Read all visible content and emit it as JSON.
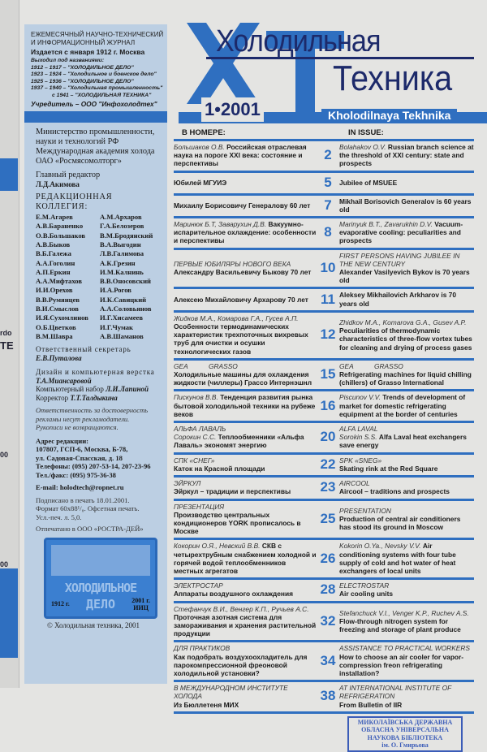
{
  "prev_page": {
    "fragments": [
      "rdo",
      "TE",
      "00",
      "00"
    ]
  },
  "masthead": {
    "caption": "ЕЖЕМЕСЯЧНЫЙ НАУЧНО-ТЕХНИЧЕСКИЙ И ИНФОРМАЦИОННЫЙ ЖУРНАЛ",
    "since": "Издается с января 1912 г. Москва",
    "former_label": "Выходил под названиями:",
    "former": [
      "1912 – 1917 – \"ХОЛОДИЛЬНОЕ ДЕЛО\"",
      "1923 – 1924 – \"Холодильное и боенское дело\"",
      "1925 – 1936 – \"ХОЛОДИЛЬНОЕ ДЕЛО\"",
      "1937 – 1940 – \"Холодильная промышленность\"",
      "с 1941 – \"ХОЛОДИЛЬНАЯ ТЕХНИКА\""
    ],
    "founder": "Учредитель – ООО \"Инфохолодтех\""
  },
  "logo": {
    "line1": "Холодильная",
    "line2": "Техника",
    "subtitle": "Kholodilnaya Tekhnika",
    "issue": "1•2001",
    "brand_color": "#2f6fc0"
  },
  "left": {
    "orgs": [
      "Министерство промышленности, науки и технологий РФ",
      "Международная академия холода",
      "ОАО «Росмясомолторг»"
    ],
    "editor_label": "Главный редактор",
    "editor": "Л.Д.Акимова",
    "board_label": "РЕДАКЦИОННАЯ КОЛЛЕГИЯ:",
    "board": [
      "Е.М.Агарев",
      "А.М.Архаров",
      "А.В.Бараненко",
      "Г.А.Белозеров",
      "О.В.Большаков",
      "В.М.Бродянский",
      "А.В.Быков",
      "В.А.Выгодин",
      "В.Б.Галежа",
      "Л.В.Галимова",
      "А.А.Гоголин",
      "А.К.Грезин",
      "А.П.Еркин",
      "И.М.Калнинь",
      "А.А.Мифтахов",
      "В.В.Оносовский",
      "И.И.Орехов",
      "И.А.Рогов",
      "В.В.Румянцев",
      "И.К.Савицкий",
      "В.И.Смыслов",
      "А.А.Соловьянов",
      "И.Я.Сухомлинов",
      "И.Г.Хисамеев",
      "О.Б.Цветков",
      "И.Г.Чумак",
      "В.М.Шавра",
      "А.В.Шаманов"
    ],
    "secretary_label": "Ответственный секретарь",
    "secretary": "Е.В.Путалова",
    "design_label": "Дизайн и компьютерная верстка",
    "designer": "Т.А.Миансаровой",
    "typeset_label": "Компьютерный набор",
    "typesetter": "Л.И.Лапиной",
    "proof_label": "Корректор",
    "proofreader": "Т.Т.Талдыкина",
    "disclaimer": [
      "Ответственность за достоверность",
      "рекламы несут рекламодатели.",
      "Рукописи не возвращаются."
    ],
    "address_label": "Адрес редакции:",
    "address": [
      "107807, ГСП-6, Москва, Б-78,",
      "ул. Садовая-Спасская, д. 18",
      "Телефоны: (095) 207-53-14, 207-23-96",
      "Тел./факс: (095) 975-36-38"
    ],
    "email": "E-mail: holodtech@ropnet.ru",
    "print": [
      "Подписано в печать 18.01.2001.",
      "Формат 60х88¹/₈. Офсетная печать.",
      "Усл.-печ. л. 5,0."
    ],
    "printer": "Отпечатано в ООО «РОСТРА-ДЕЙ»",
    "stamp": {
      "title": "ХОЛОДИЛЬНОЕ",
      "title2": "ДЕЛО",
      "year_left": "1912 г.",
      "year_right": "2001 г.",
      "org": "ИИЦ"
    },
    "copyright": "© Холодильная техника, 2001"
  },
  "toc": {
    "ru_header": "В НОМЕРЕ:",
    "en_header": "IN ISSUE:",
    "rows": [
      {
        "ru_au": "Большаков О.В.",
        "ru": "Российская отраслевая наука на пороге XXI века: состояние и перспективы",
        "page": "2",
        "en_au": "Bolahakov O.V.",
        "en": "Russian branch science at the threshold of XXI century: state and prospects"
      },
      {
        "ru": "Юбилей МГУИЭ",
        "page": "5",
        "en": "Jubilee of MSUEE"
      },
      {
        "ru": "Михаилу Борисовичу Генералову 60 лет",
        "page": "7",
        "en": "Mikhail Borisovich Generalov is 60 years old"
      },
      {
        "ru_au": "Маринюк Б.Т, Заварухин Д.В.",
        "ru": "Вакуумно-испарительное охлаждение: особенности и перспективы",
        "page": "8",
        "en_au": "Marinyuk B.T., Zavarukhin D.V.",
        "en": "Vacuum-evaporative cooling: peculiarities and prospects"
      },
      {
        "ru_sec": "ПЕРВЫЕ ЮБИЛЯРЫ НОВОГО ВЕКА",
        "ru": "Александру Васильевичу Быкову 70 лет",
        "page": "10",
        "en_sec": "FIRST PERSONS HAVING JUBILEE IN THE NEW CENTURY",
        "en": "Alexander Vasilyevich Bykov is 70 years old"
      },
      {
        "ru": "Алексею Михайловичу Архарову 70 лет",
        "page": "11",
        "en": "Aleksey Mikhailovich Arkharov is 70 years old"
      },
      {
        "ru_au": "Жидков М.А., Комарова Г.А., Гусев А.П.",
        "ru": "Особенности термодинамических характеристик трехпоточных вихревых труб для очистки и осушки технологических газов",
        "page": "12",
        "en_au": "Zhidkov M.A., Komarova G.A., Gusev A.P.",
        "en": "Peculiarities of thermodynamic characteristics of three-flow vortex tubes for cleaning and drying of process gases"
      },
      {
        "ru_sec": "GEA           GRASSO",
        "ru": "Холодильные машины для охлаждения жидкости (чиллеры) Грассо Интернэшнл",
        "page": "15",
        "en_sec": "GEA           GRASSO",
        "en": "Refrigerating machines for liquid chilling (chillers) of Grasso International"
      },
      {
        "ru_au": "Пискунов В.В.",
        "ru": "Тенденция развития рынка бытовой холодильной техники на рубеже веков",
        "page": "16",
        "en_au": "Piscunov V.V.",
        "en": "Trends of development of market for domestic refrigerating equipment at the border of centuries"
      },
      {
        "ru_sec": "АЛЬФА ЛАВАЛЬ",
        "ru_au": "Сорокин С.С.",
        "ru": "Теплообменники «Альфа Лаваль» экономят энергию",
        "page": "20",
        "en_sec": "ALFA LAVAL",
        "en_au": "Sorokin S.S.",
        "en": "Alfa Laval heat exchangers save energy"
      },
      {
        "ru_sec": "СПК «СНЕГ»",
        "ru": "Каток на Красной площади",
        "page": "22",
        "en_sec": "SPK «SNEG»",
        "en": "Skating rink at the Red Square"
      },
      {
        "ru_sec": "ЭЙРКУЛ",
        "ru": "Эйркул – традиции и перспективы",
        "page": "23",
        "en_sec": "AIRCOOL",
        "en": "Aircool – traditions and prospects"
      },
      {
        "ru_sec": "ПРЕЗЕНТАЦИЯ",
        "ru": "Производство центральных кондиционеров YORK прописалось в Москве",
        "page": "25",
        "en_sec": "PRESENTATION",
        "en": "Production of central air conditioners has stood its ground in Moscow"
      },
      {
        "ru_au": "Кокорин О.Я., Невский В.В.",
        "ru": "СКВ с четырехтрубным снабжением холодной и горячей водой теплообменников местных агрегатов",
        "page": "26",
        "en_au": "Kokorin O.Ya., Nevsky V.V.",
        "en": "Air conditioning systems with four tube supply of cold and hot water of heat exchangers of local units"
      },
      {
        "ru_sec": "ЭЛЕКТРОСТАР",
        "ru": "Аппараты воздушного охлаждения",
        "page": "28",
        "en_sec": "ELECTROSTAR",
        "en": "Air cooling units"
      },
      {
        "ru_au": "Стефанчук В.И., Венгер К.П., Ручьев А.С.",
        "ru": "Проточная азотная система для замораживания и хранения растительной продукции",
        "page": "32",
        "en_au": "Stefanchuck V.I., Venger K.P., Ruchev A.S.",
        "en": "Flow-through nitrogen system for freezing and storage of plant produce"
      },
      {
        "ru_sec": "ДЛЯ ПРАКТИКОВ",
        "ru": "Как подобрать воздухоохладитель для парокомпрессионной фреоновой холодильной установки?",
        "page": "34",
        "en_sec": "ASSISTANCE TO PRACTICAL WORKERS",
        "en": "How to choose an air cooler for vapor-compression freon refrigerating installation?"
      },
      {
        "ru_sec": "В МЕЖДУНАРОДНОМ ИНСТИТУТЕ ХОЛОДА",
        "ru": "Из Бюллетеня МИХ",
        "page": "38",
        "en_sec": "AT INTERNATIONAL INSTITUTE OF REFRIGERATION",
        "en": "From Bulletin of IIR"
      }
    ]
  },
  "library_stamp": [
    "МИКОЛАЇВСЬКА ДЕРЖАВНА",
    "ОБЛАСНА УНІВЕРСАЛЬНА",
    "НАУКОВА БІБЛІОТЕКА",
    "ім. О. Гмирьова"
  ]
}
